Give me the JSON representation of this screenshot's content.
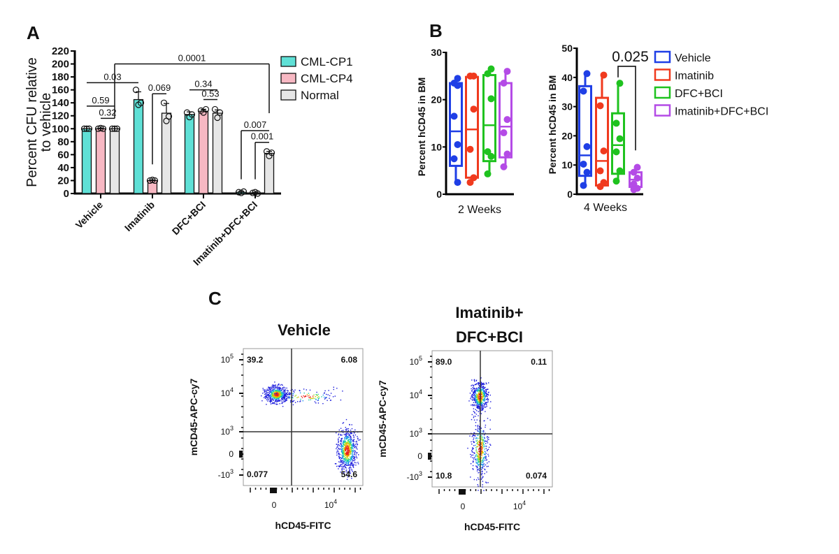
{
  "panel_labels": {
    "a": "A",
    "b": "B",
    "c": "C"
  },
  "chart_data": [
    {
      "id": "A",
      "type": "bar",
      "ylabel_lines": [
        "Percent CFU relative",
        "to vehicle"
      ],
      "ylim": [
        0,
        220
      ],
      "yticks": [
        0,
        20,
        40,
        60,
        80,
        100,
        120,
        140,
        160,
        180,
        200,
        220
      ],
      "categories": [
        "Vehicle",
        "Imatinib",
        "DFC+BCI",
        "Imatinib+DFC+BCI"
      ],
      "series": [
        {
          "name": "CML-CP1",
          "color": "#5fe0d6",
          "values": [
            100,
            145,
            122,
            2
          ],
          "points": [
            [
              100,
              100,
              100
            ],
            [
              160,
              137,
              140
            ],
            [
              125,
              118,
              122
            ],
            [
              2,
              1,
              3
            ]
          ],
          "error": [
            0,
            12,
            4,
            1
          ]
        },
        {
          "name": "CML-CP4",
          "color": "#f7b8c3",
          "values": [
            100,
            20,
            127,
            1
          ],
          "points": [
            [
              100,
              101,
              100
            ],
            [
              20,
              21,
              20
            ],
            [
              128,
              125,
              130
            ],
            [
              1,
              2,
              0
            ]
          ],
          "error": [
            1,
            1,
            3,
            1
          ]
        },
        {
          "name": "Normal",
          "color": "#e6e6e6",
          "values": [
            100,
            124,
            124,
            62
          ],
          "points": [
            [
              100,
              100,
              100
            ],
            [
              140,
              112,
              119
            ],
            [
              130,
              117,
              125
            ],
            [
              65,
              58,
              63
            ]
          ],
          "error": [
            0,
            15,
            5,
            3
          ]
        }
      ],
      "significance": [
        {
          "label": "0.03",
          "from": [
            0,
            0
          ],
          "to": [
            1,
            0
          ],
          "y": 171
        },
        {
          "label": "0.59",
          "from": [
            0,
            0
          ],
          "to": [
            0,
            2
          ],
          "y": 135
        },
        {
          "label": "0.32",
          "from": [
            0,
            1
          ],
          "to": [
            0,
            2
          ],
          "y": 116
        },
        {
          "label": "0.0001",
          "from": [
            0,
            2
          ],
          "to": [
            3,
            2
          ],
          "y": 200,
          "left_leg": 116,
          "right_leg": 124
        },
        {
          "label": "0.069",
          "from": [
            1,
            1
          ],
          "to": [
            1,
            2
          ],
          "y": 154,
          "left_leg": 45
        },
        {
          "label": "0.34",
          "from": [
            2,
            0
          ],
          "to": [
            2,
            2
          ],
          "y": 160
        },
        {
          "label": "0.53",
          "from": [
            2,
            1
          ],
          "to": [
            2,
            2
          ],
          "y": 145
        },
        {
          "label": "0.007",
          "from": [
            3,
            0
          ],
          "to": [
            3,
            2
          ],
          "y": 97,
          "left_leg": 22
        },
        {
          "label": "0.001",
          "from": [
            3,
            1
          ],
          "to": [
            3,
            2
          ],
          "y": 79,
          "left_leg": 22
        }
      ]
    },
    {
      "id": "B",
      "type": "box",
      "ylabel": "Percent hCD45 in BM",
      "legend": [
        {
          "name": "Vehicle",
          "color": "#1f3fe6"
        },
        {
          "name": "Imatinib",
          "color": "#f03a1e"
        },
        {
          "name": "DFC+BCI",
          "color": "#1fc21f"
        },
        {
          "name": "Imatinib+DFC+BCI",
          "color": "#b44be6"
        }
      ],
      "panels": [
        {
          "xlabel": "2 Weeks",
          "ylim": [
            0,
            30
          ],
          "yticks": [
            0,
            10,
            20,
            30
          ],
          "groups": [
            {
              "points": [
                24.5,
                23.5,
                23,
                16.5,
                10.5,
                7.5,
                2.5
              ],
              "min": 2.5,
              "q1": 6,
              "median": 13.3,
              "q3": 23.5,
              "max": 24.5
            },
            {
              "points": [
                25,
                25,
                18,
                9.5,
                3.5,
                2.5
              ],
              "min": 2.5,
              "q1": 3.5,
              "median": 13.7,
              "q3": 24.8,
              "max": 25
            },
            {
              "points": [
                26.5,
                25.5,
                20.2,
                9,
                8,
                4.3
              ],
              "min": 4.3,
              "q1": 7,
              "median": 14.6,
              "q3": 25.2,
              "max": 26.5
            },
            {
              "points": [
                26,
                23.5,
                15.8,
                13,
                8.5,
                5.8
              ],
              "min": 5.8,
              "q1": 7.8,
              "median": 14.3,
              "q3": 23.5,
              "max": 26
            }
          ]
        },
        {
          "xlabel": "4 Weeks",
          "ylim": [
            0,
            50
          ],
          "yticks": [
            0,
            10,
            20,
            30,
            40,
            50
          ],
          "groups": [
            {
              "points": [
                41.3,
                35.3,
                16.3,
                10.3,
                7.5,
                3
              ],
              "min": 3,
              "q1": 6.3,
              "median": 13.3,
              "q3": 37,
              "max": 41.3
            },
            {
              "points": [
                40.8,
                30.3,
                14.8,
                8,
                4,
                2.6
              ],
              "min": 2.6,
              "q1": 3,
              "median": 11.4,
              "q3": 33,
              "max": 40.8
            },
            {
              "points": [
                38,
                24.3,
                19,
                14.5,
                8,
                4.5
              ],
              "min": 4.5,
              "q1": 7,
              "median": 16.8,
              "q3": 27.7,
              "max": 38
            },
            {
              "points": [
                9.2,
                7.5,
                5.5,
                3.5,
                2,
                1.6
              ],
              "min": 1.6,
              "q1": 2.5,
              "median": 5,
              "q3": 7.5,
              "max": 9.2
            }
          ],
          "significance": {
            "label": "0.025",
            "from": 2,
            "to": 3,
            "y": 43.8,
            "left_leg": 40,
            "right_leg": 15
          }
        }
      ]
    },
    {
      "id": "C",
      "type": "scatter",
      "xlabel": "hCD45-FITC",
      "ylabel": "mCD45-APC-cy7",
      "yticks": [
        {
          "base": "10",
          "exp": "5"
        },
        {
          "base": "10",
          "exp": "4"
        },
        {
          "base": "10",
          "exp": "3"
        },
        {
          "base": "0",
          "exp": ""
        },
        {
          "base": "-10",
          "exp": "3"
        }
      ],
      "xticks": [
        {
          "base": "0",
          "exp": ""
        },
        {
          "base": "10",
          "exp": "4"
        }
      ],
      "plots": [
        {
          "title_lines": [
            "Vehicle"
          ],
          "quadrants": {
            "upper_left": "39.2",
            "upper_right": "6.08",
            "lower_left": "0.077",
            "lower_right": "54.6"
          }
        },
        {
          "title_lines": [
            "Imatinib+",
            "DFC+BCI"
          ],
          "quadrants": {
            "upper_left": "89.0",
            "upper_right": "0.11",
            "lower_left": "10.8",
            "lower_right": "0.074"
          }
        }
      ]
    }
  ]
}
